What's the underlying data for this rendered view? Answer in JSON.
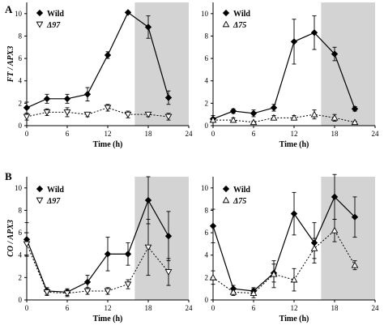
{
  "figure": {
    "rows": [
      {
        "letter": "A",
        "ylabel": "FT / APX3"
      },
      {
        "letter": "B",
        "ylabel": "CO / APX3"
      }
    ]
  },
  "chart_data": [
    {
      "type": "line",
      "panel": "A-left",
      "xlabel": "Time (h)",
      "ylabel": "FT / APX3",
      "xlim": [
        0,
        24
      ],
      "ylim": [
        0,
        11
      ],
      "xticks": [
        "0",
        "6",
        "12",
        "18",
        "24"
      ],
      "yticks": [
        "0",
        "2",
        "4",
        "6",
        "8",
        "10"
      ],
      "shaded_region": [
        16,
        24
      ],
      "legend_position": "top-left",
      "series": [
        {
          "name": "Wild",
          "marker": "diamond-filled",
          "line": "solid",
          "x": [
            0,
            3,
            6,
            9,
            12,
            15,
            18,
            21
          ],
          "y": [
            1.6,
            2.4,
            2.4,
            2.8,
            6.3,
            10.1,
            8.8,
            2.5
          ],
          "err": [
            0.5,
            0.4,
            0.4,
            0.6,
            0.3,
            0.1,
            1.0,
            0.6
          ]
        },
        {
          "name": "Δ97",
          "marker": "triangle-down-open",
          "line": "dotted",
          "x": [
            0,
            3,
            6,
            9,
            12,
            15,
            18,
            21
          ],
          "y": [
            0.8,
            1.2,
            1.2,
            1.0,
            1.6,
            1.0,
            1.0,
            0.8
          ],
          "err": [
            0.3,
            0.3,
            0.4,
            0.2,
            0.3,
            0.3,
            0.2,
            0.3
          ]
        }
      ]
    },
    {
      "type": "line",
      "panel": "A-right",
      "xlabel": "Time (h)",
      "ylabel": "",
      "xlim": [
        0,
        24
      ],
      "ylim": [
        0,
        11
      ],
      "xticks": [
        "0",
        "6",
        "12",
        "18",
        "24"
      ],
      "yticks": [
        "0",
        "2",
        "4",
        "6",
        "8",
        "10"
      ],
      "shaded_region": [
        16,
        24
      ],
      "legend_position": "top-left",
      "series": [
        {
          "name": "Wild",
          "marker": "diamond-filled",
          "line": "solid",
          "x": [
            0,
            3,
            6,
            9,
            12,
            15,
            18,
            21
          ],
          "y": [
            0.6,
            1.3,
            1.1,
            1.6,
            7.5,
            8.3,
            6.4,
            1.5
          ],
          "err": [
            0.3,
            0.2,
            0.3,
            0.3,
            2.0,
            1.5,
            0.6,
            0.2
          ]
        },
        {
          "name": "Δ75",
          "marker": "triangle-up-open",
          "line": "dotted",
          "x": [
            0,
            3,
            6,
            9,
            12,
            15,
            18,
            21
          ],
          "y": [
            0.5,
            0.5,
            0.3,
            0.7,
            0.7,
            1.0,
            0.7,
            0.3
          ],
          "err": [
            0.2,
            0.2,
            0.1,
            0.2,
            0.2,
            0.4,
            0.3,
            0.1
          ]
        }
      ]
    },
    {
      "type": "line",
      "panel": "B-left",
      "xlabel": "Time (h)",
      "ylabel": "CO / APX3",
      "xlim": [
        0,
        24
      ],
      "ylim": [
        0,
        11
      ],
      "xticks": [
        "0",
        "6",
        "12",
        "18",
        "24"
      ],
      "yticks": [
        "0",
        "2",
        "4",
        "6",
        "8",
        "10"
      ],
      "shaded_region": [
        16,
        24
      ],
      "legend_position": "top-left",
      "series": [
        {
          "name": "Wild",
          "marker": "diamond-filled",
          "line": "solid",
          "x": [
            0,
            3,
            6,
            9,
            12,
            15,
            18,
            21
          ],
          "y": [
            5.4,
            0.8,
            0.7,
            1.6,
            4.1,
            4.1,
            8.9,
            5.7
          ],
          "err": [
            1.5,
            0.3,
            0.3,
            0.6,
            1.5,
            1.0,
            2.1,
            2.2
          ]
        },
        {
          "name": "Δ97",
          "marker": "triangle-down-open",
          "line": "dotted",
          "x": [
            0,
            3,
            6,
            9,
            12,
            15,
            18,
            21
          ],
          "y": [
            5.0,
            0.7,
            0.6,
            0.8,
            0.8,
            1.4,
            4.7,
            2.5
          ],
          "err": [
            1.0,
            0.3,
            0.3,
            0.3,
            0.3,
            0.4,
            2.5,
            1.2
          ]
        }
      ]
    },
    {
      "type": "line",
      "panel": "B-right",
      "xlabel": "Time (h)",
      "ylabel": "",
      "xlim": [
        0,
        24
      ],
      "ylim": [
        0,
        11
      ],
      "xticks": [
        "0",
        "6",
        "12",
        "18",
        "24"
      ],
      "yticks": [
        "0",
        "2",
        "4",
        "6",
        "8",
        "10"
      ],
      "shaded_region": [
        16,
        24
      ],
      "legend_position": "top-left",
      "series": [
        {
          "name": "Wild",
          "marker": "diamond-filled",
          "line": "solid",
          "x": [
            0,
            3,
            6,
            9,
            12,
            15,
            18,
            21
          ],
          "y": [
            6.6,
            1.0,
            0.8,
            2.4,
            7.7,
            5.1,
            9.2,
            7.4
          ],
          "err": [
            1.5,
            0.3,
            0.3,
            0.8,
            1.9,
            1.8,
            2.0,
            1.8
          ]
        },
        {
          "name": "Δ75",
          "marker": "triangle-up-open",
          "line": "dotted",
          "x": [
            0,
            3,
            6,
            9,
            12,
            15,
            18,
            21
          ],
          "y": [
            2.0,
            0.7,
            0.6,
            2.3,
            1.8,
            4.6,
            6.2,
            3.1
          ],
          "err": [
            0.6,
            0.3,
            0.4,
            1.2,
            1.0,
            0.9,
            1.0,
            0.4
          ]
        }
      ]
    }
  ]
}
